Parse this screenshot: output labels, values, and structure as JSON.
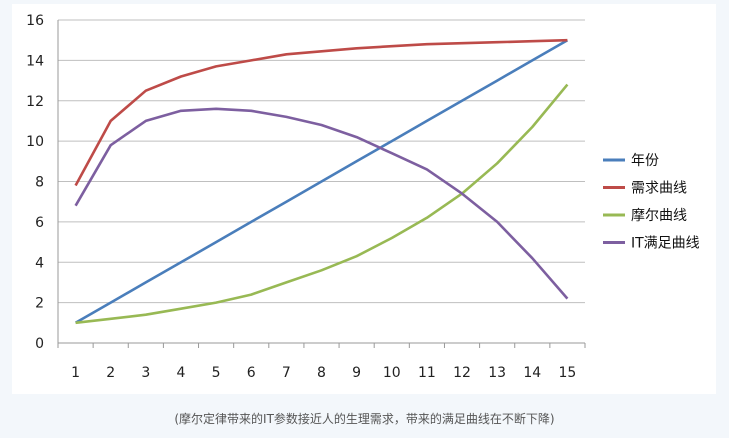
{
  "chart_data": {
    "type": "line",
    "categories": [
      "1",
      "2",
      "3",
      "4",
      "5",
      "6",
      "7",
      "8",
      "9",
      "10",
      "11",
      "12",
      "13",
      "14",
      "15"
    ],
    "ylim": [
      0,
      16
    ],
    "yticks": [
      0,
      2,
      4,
      6,
      8,
      10,
      12,
      14,
      16
    ],
    "grid": true,
    "legend_position": "right",
    "series": [
      {
        "name": "年份",
        "color": "#4a7ebb",
        "values": [
          1,
          2,
          3,
          4,
          5,
          6,
          7,
          8,
          9,
          10,
          11,
          12,
          13,
          14,
          15
        ]
      },
      {
        "name": "需求曲线",
        "color": "#be4b48",
        "values": [
          7.8,
          11.0,
          12.5,
          13.2,
          13.7,
          14.0,
          14.3,
          14.45,
          14.6,
          14.7,
          14.8,
          14.85,
          14.9,
          14.95,
          15.0
        ]
      },
      {
        "name": "摩尔曲线",
        "color": "#98b954",
        "values": [
          1.0,
          1.2,
          1.4,
          1.7,
          2.0,
          2.4,
          3.0,
          3.6,
          4.3,
          5.2,
          6.2,
          7.4,
          8.9,
          10.7,
          12.8
        ]
      },
      {
        "name": "IT满足曲线",
        "color": "#7d5fa0",
        "values": [
          6.8,
          9.8,
          11.0,
          11.5,
          11.6,
          11.5,
          11.2,
          10.8,
          10.2,
          9.4,
          8.6,
          7.4,
          6.0,
          4.2,
          2.2
        ]
      }
    ]
  },
  "caption": "(摩尔定律带来的IT参数接近人的生理需求，带来的满足曲线在不断下降)"
}
